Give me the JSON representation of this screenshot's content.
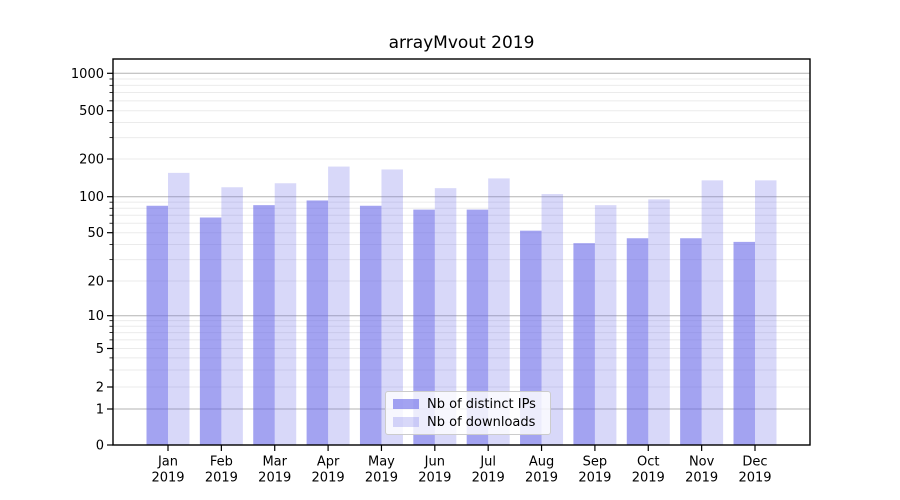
{
  "chart_data": {
    "type": "bar",
    "title": "arrayMvout 2019",
    "categories": [
      "Jan",
      "Feb",
      "Mar",
      "Apr",
      "May",
      "Jun",
      "Jul",
      "Aug",
      "Sep",
      "Oct",
      "Nov",
      "Dec"
    ],
    "x_tick_year": "2019",
    "series": [
      {
        "name": "Nb of distinct IPs",
        "color": "rgba(106,106,233,0.62)",
        "values": [
          84,
          67,
          85,
          93,
          84,
          78,
          78,
          52,
          41,
          45,
          45,
          42
        ]
      },
      {
        "name": "Nb of downloads",
        "color": "rgba(106,106,233,0.26)",
        "values": [
          155,
          119,
          128,
          174,
          165,
          117,
          140,
          105,
          85,
          95,
          135,
          135
        ]
      }
    ],
    "y_scale": "symlog",
    "y_ticks": [
      0,
      1,
      2,
      5,
      10,
      20,
      50,
      100,
      200,
      500,
      1000
    ],
    "y_tick_labels": [
      "0",
      "1",
      "2",
      "5",
      "10",
      "20",
      "50",
      "100",
      "200",
      "500",
      "1000"
    ],
    "y_minor_unlabeled": [
      3,
      4,
      6,
      7,
      8,
      9,
      30,
      40,
      60,
      70,
      80,
      90,
      300,
      400,
      600,
      700,
      800,
      900
    ],
    "ylim": [
      0,
      1300
    ],
    "grid": true,
    "legend_position": "lower center",
    "colors": {
      "bar_base": "#6a6ae9",
      "grid_minor": "#ebebeb",
      "grid_major": "#b3b3b3",
      "axis": "#000000",
      "tick_label": "#000000",
      "background": "#ffffff",
      "legend_border": "#cccccc"
    }
  }
}
